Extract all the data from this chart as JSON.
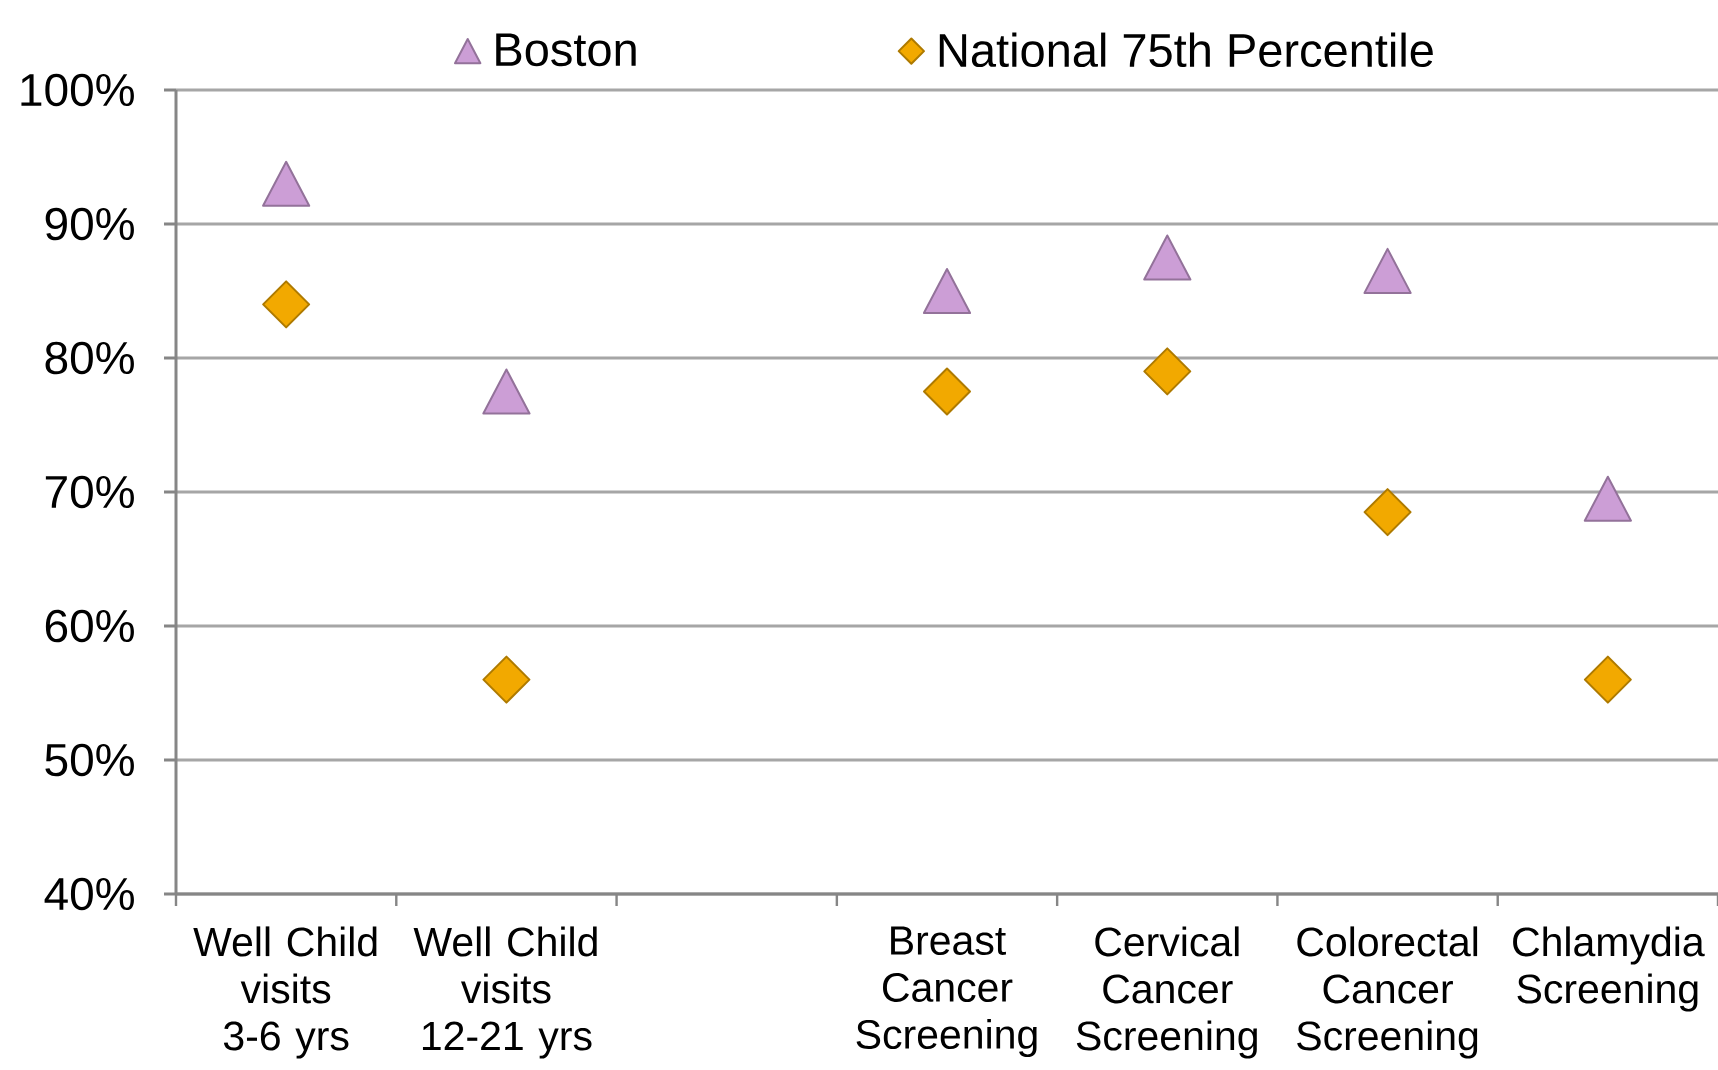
{
  "chart_data": {
    "type": "scatter",
    "categories": [
      "Well Child visits 3-6 yrs",
      "Well Child visits 12-21 yrs",
      null,
      "Breast Cancer Screening",
      "Cervical Cancer Screening",
      "Colorectal Cancer Screening",
      "Chlamydia Screening"
    ],
    "series": [
      {
        "name": "Boston",
        "color": "#cc9ed6",
        "marker": "triangle",
        "values": [
          93,
          77.5,
          null,
          85,
          87.5,
          86.5,
          69.5
        ]
      },
      {
        "name": "National 75th Percentile",
        "color": "#f2a900",
        "marker": "diamond",
        "values": [
          84,
          56,
          null,
          77.5,
          79,
          68.5,
          56
        ]
      }
    ],
    "ylim": [
      40,
      100
    ],
    "yticks": [
      {
        "value": 40,
        "label": "40%"
      },
      {
        "value": 50,
        "label": "50%"
      },
      {
        "value": 60,
        "label": "60%"
      },
      {
        "value": 70,
        "label": "70%"
      },
      {
        "value": 80,
        "label": "80%"
      },
      {
        "value": 90,
        "label": "90%"
      },
      {
        "value": 100,
        "label": "100%"
      }
    ],
    "grid": "y",
    "legend": "top"
  }
}
